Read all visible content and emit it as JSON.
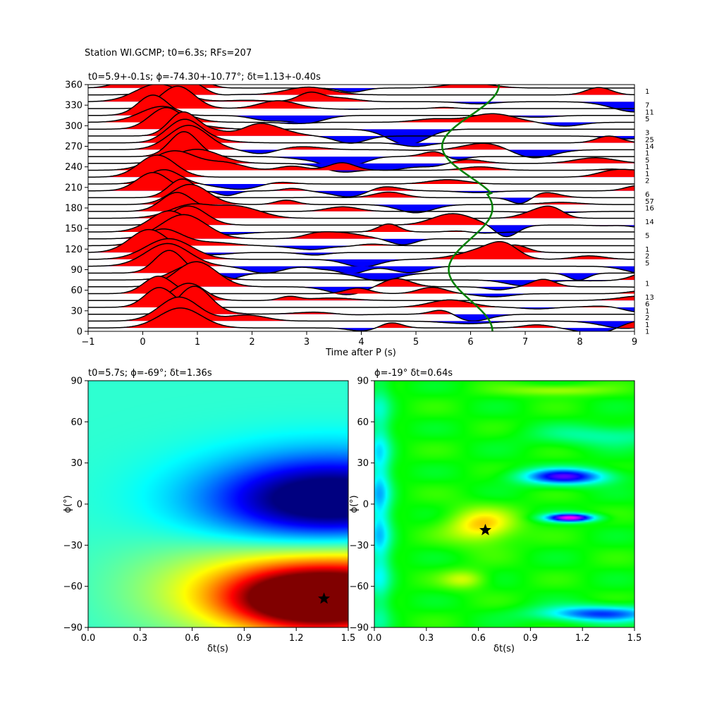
{
  "figure_title": "Station WI.GCMP; t0=6.3s; RFs=207",
  "chart_data": [
    {
      "type": "wiggle",
      "title": "t0=5.9+-0.1s; ϕ=-74.30+-10.77°; δt=1.13+-0.40s",
      "xlabel": "Time after P (s)",
      "ylabel": "",
      "xlim": [
        -1,
        9
      ],
      "ylim": [
        0,
        360
      ],
      "xticks": [
        "−1",
        "0",
        "1",
        "2",
        "3",
        "4",
        "5",
        "6",
        "7",
        "8",
        "9"
      ],
      "yticks": [
        "0",
        "30",
        "60",
        "90",
        "120",
        "150",
        "180",
        "210",
        "240",
        "270",
        "300",
        "330",
        "360"
      ],
      "fill_positive_color": "#ff0000",
      "fill_negative_color": "#0000ff",
      "trace_color": "#000000",
      "fit_curve_color": "#008000",
      "trace_counts": [
        {
          "baz": 0,
          "count": "1"
        },
        {
          "baz": 10,
          "count": "1"
        },
        {
          "baz": 20,
          "count": "2"
        },
        {
          "baz": 30,
          "count": "1"
        },
        {
          "baz": 40,
          "count": "6"
        },
        {
          "baz": 50,
          "count": "13"
        },
        {
          "baz": 70,
          "count": "1"
        },
        {
          "baz": 100,
          "count": "5"
        },
        {
          "baz": 110,
          "count": "2"
        },
        {
          "baz": 120,
          "count": "1"
        },
        {
          "baz": 140,
          "count": "5"
        },
        {
          "baz": 160,
          "count": "14"
        },
        {
          "baz": 180,
          "count": "16"
        },
        {
          "baz": 190,
          "count": "57"
        },
        {
          "baz": 200,
          "count": "6"
        },
        {
          "baz": 220,
          "count": "2"
        },
        {
          "baz": 230,
          "count": "1"
        },
        {
          "baz": 240,
          "count": "1"
        },
        {
          "baz": 250,
          "count": "5"
        },
        {
          "baz": 260,
          "count": "1"
        },
        {
          "baz": 270,
          "count": "14"
        },
        {
          "baz": 280,
          "count": "25"
        },
        {
          "baz": 290,
          "count": "3"
        },
        {
          "baz": 310,
          "count": "5"
        },
        {
          "baz": 320,
          "count": "11"
        },
        {
          "baz": 330,
          "count": "7"
        },
        {
          "baz": 350,
          "count": "1"
        }
      ],
      "fit_curve": {
        "center": 6.0,
        "amplitude": 0.4,
        "phase_deg": 0
      }
    },
    {
      "type": "heatmap",
      "title": "t0=5.7s; ϕ=-69°; δt=1.36s",
      "xlabel": "δt(s)",
      "ylabel": "ϕ(°)",
      "xlim": [
        0,
        1.5
      ],
      "ylim": [
        -90,
        90
      ],
      "xticks": [
        "0.0",
        "0.3",
        "0.6",
        "0.9",
        "1.2",
        "1.5"
      ],
      "yticks": [
        "−90",
        "−60",
        "−30",
        "0",
        "30",
        "60",
        "90"
      ],
      "colormap": "jet",
      "best_fit": {
        "dt": 1.36,
        "phi": -69
      },
      "features": [
        {
          "dt": 1.3,
          "phi": -70,
          "sx": 0.45,
          "sy": 20,
          "amp": 0.55
        },
        {
          "dt": 1.45,
          "phi": -60,
          "sx": 0.9,
          "sy": 38,
          "amp": 0.35
        },
        {
          "dt": 1.4,
          "phi": 2,
          "sx": 0.7,
          "sy": 32,
          "amp": -0.55
        }
      ],
      "base": 0.42
    },
    {
      "type": "heatmap",
      "title": "ϕ=-19° δt=0.64s",
      "xlabel": "δt(s)",
      "ylabel": "ϕ(°)",
      "xlim": [
        0,
        1.5
      ],
      "ylim": [
        -90,
        90
      ],
      "xticks": [
        "0.0",
        "0.3",
        "0.6",
        "0.9",
        "1.2",
        "1.5"
      ],
      "yticks": [
        "−90",
        "−60",
        "−30",
        "0",
        "30",
        "60",
        "90"
      ],
      "colormap": "hsv",
      "best_fit": {
        "dt": 0.64,
        "phi": -19
      },
      "features": [
        {
          "dt": 0.62,
          "phi": -16,
          "sx": 0.2,
          "sy": 13,
          "amp": -0.2
        },
        {
          "dt": 0.52,
          "phi": -55,
          "sx": 0.13,
          "sy": 7,
          "amp": -0.13
        },
        {
          "dt": 1.05,
          "phi": 83,
          "sx": 0.28,
          "sy": 4,
          "amp": -0.12
        },
        {
          "dt": 1.1,
          "phi": 20,
          "sx": 0.25,
          "sy": 6,
          "amp": 0.38
        },
        {
          "dt": 1.13,
          "phi": -10,
          "sx": 0.14,
          "sy": 3,
          "amp": 0.5
        },
        {
          "dt": 1.3,
          "phi": -80,
          "sx": 0.35,
          "sy": 6,
          "amp": 0.3
        },
        {
          "dt": 1.35,
          "phi": 50,
          "sx": 0.4,
          "sy": 8,
          "amp": 0.12
        },
        {
          "dt": 0.03,
          "phi": 0,
          "sx": 0.07,
          "sy": 90,
          "amp": 0.2
        }
      ],
      "base": 0.33
    }
  ]
}
